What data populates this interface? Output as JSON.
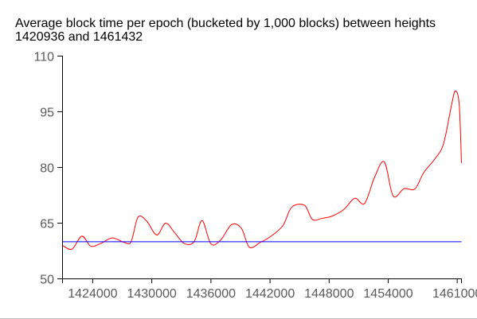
{
  "chart_data": {
    "type": "line",
    "title": "Average block time per epoch (bucketed by 1,000 blocks) between heights 1420936 and 1461432",
    "xlabel": "",
    "ylabel": "",
    "xlim": [
      1420936,
      1461432
    ],
    "ylim": [
      50,
      110
    ],
    "x_ticks": [
      1424000,
      1430000,
      1436000,
      1442000,
      1448000,
      1454000,
      1461000
    ],
    "y_ticks": [
      50,
      65,
      80,
      95,
      110
    ],
    "grid": false,
    "legend": "none",
    "series": [
      {
        "color": "#ff0000",
        "style": "smooth",
        "points": [
          [
            1420936,
            59.0
          ],
          [
            1421900,
            58.0
          ],
          [
            1422900,
            61.5
          ],
          [
            1423800,
            58.8
          ],
          [
            1424800,
            59.5
          ],
          [
            1426000,
            61.0
          ],
          [
            1427200,
            59.8
          ],
          [
            1427900,
            60.0
          ],
          [
            1428600,
            66.6
          ],
          [
            1429500,
            65.5
          ],
          [
            1430500,
            61.8
          ],
          [
            1431400,
            65.0
          ],
          [
            1432300,
            62.5
          ],
          [
            1433300,
            59.5
          ],
          [
            1434300,
            60.0
          ],
          [
            1435100,
            65.7
          ],
          [
            1436000,
            59.4
          ],
          [
            1437000,
            60.5
          ],
          [
            1438100,
            64.6
          ],
          [
            1439100,
            63.6
          ],
          [
            1439900,
            58.5
          ],
          [
            1441000,
            59.8
          ],
          [
            1442000,
            61.3
          ],
          [
            1443300,
            64.3
          ],
          [
            1444200,
            69.3
          ],
          [
            1445500,
            69.8
          ],
          [
            1446300,
            66.0
          ],
          [
            1447300,
            66.3
          ],
          [
            1448300,
            66.9
          ],
          [
            1449500,
            68.7
          ],
          [
            1450600,
            71.7
          ],
          [
            1451600,
            70.3
          ],
          [
            1452600,
            77.3
          ],
          [
            1453600,
            81.5
          ],
          [
            1454500,
            72.3
          ],
          [
            1455600,
            74.3
          ],
          [
            1456700,
            74.2
          ],
          [
            1457600,
            78.6
          ],
          [
            1458700,
            82.2
          ],
          [
            1459600,
            86.3
          ],
          [
            1460400,
            96.5
          ],
          [
            1460800,
            100.6
          ],
          [
            1461200,
            97.0
          ],
          [
            1461432,
            81.2
          ]
        ]
      },
      {
        "color": "#0000ff",
        "style": "flat",
        "points": [
          [
            1420936,
            60
          ],
          [
            1461432,
            60
          ]
        ]
      }
    ]
  }
}
